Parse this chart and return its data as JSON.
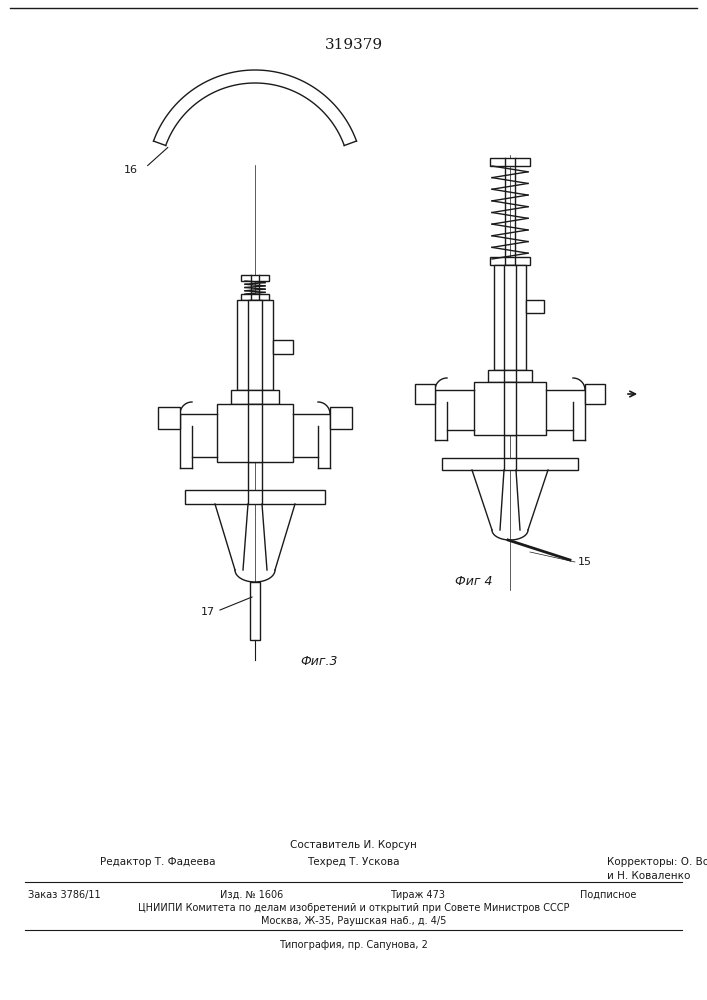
{
  "patent_number": "319379",
  "fig3_label": "Фиг.3",
  "fig4_label": "Фиг 4",
  "label_16": "16",
  "label_17": "17",
  "label_15": "15",
  "text_composer": "Составитель И. Корсун",
  "text_editor": "Редактор Т. Фадеева",
  "text_techred": "Техред Т. Ускова",
  "text_correctors": "Корректоры: О. Волкова",
  "text_correctors2": "и Н. Коваленко",
  "text_order": "Заказ 3786/11",
  "text_izd": "Изд. № 1606",
  "text_tirazh": "Тираж 473",
  "text_podpisnoe": "Подписное",
  "text_cniipи": "ЦНИИПИ Комитета по делам изобретений и открытий при Совете Министров СССР",
  "text_moscow": "Москва, Ж-35, Раушская наб., д. 4/5",
  "text_tipografia": "Типография, пр. Сапунова, 2",
  "bg_color": "#ffffff",
  "line_color": "#1a1a1a"
}
